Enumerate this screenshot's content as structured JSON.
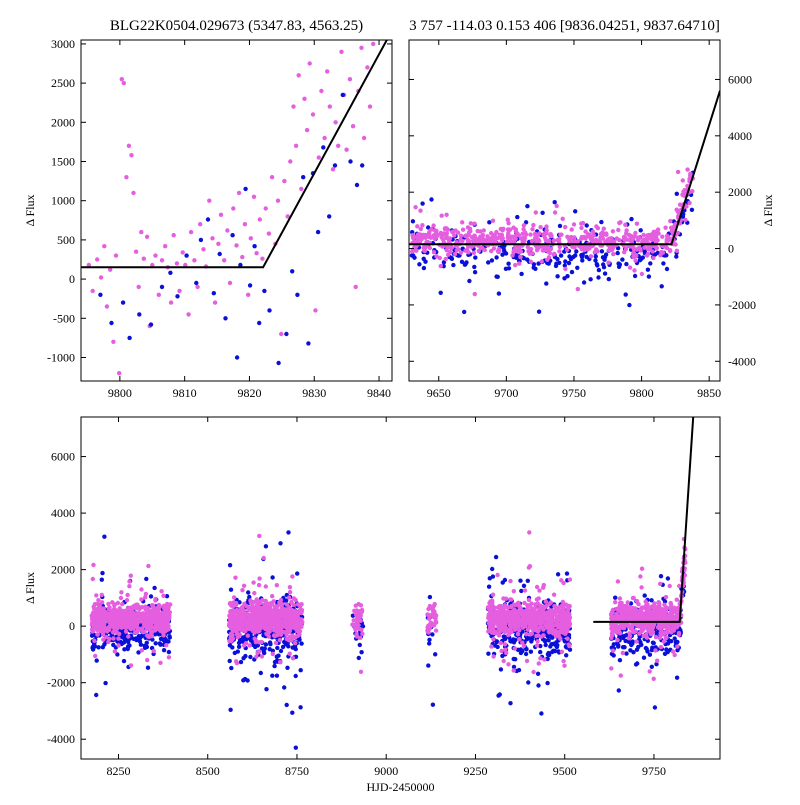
{
  "colors": {
    "series_pink": "#e55ee0",
    "series_blue": "#0a10d8",
    "model_line": "#000000",
    "axes": "#000000"
  },
  "chart_data": [
    {
      "type": "scatter",
      "title": "BLG22K0504.029673 (5347.83, 4563.25)",
      "xlabel": "",
      "ylabel": "Δ Flux",
      "xlim": [
        9794,
        9842
      ],
      "ylim": [
        -1300,
        3050
      ],
      "xticks": [
        9800,
        9810,
        9820,
        9830,
        9840
      ],
      "yticks": [
        -1000,
        -500,
        0,
        500,
        1000,
        1500,
        2000,
        2500,
        3000
      ],
      "yaxis_side": "left",
      "grid": false,
      "series": [
        {
          "color": "#e55ee0",
          "points": [
            [
              9795.2,
              180
            ],
            [
              9795.8,
              -150
            ],
            [
              9796.5,
              250
            ],
            [
              9797.1,
              20
            ],
            [
              9797.6,
              420
            ],
            [
              9798.0,
              -350
            ],
            [
              9798.5,
              120
            ],
            [
              9799.0,
              -800
            ],
            [
              9799.4,
              300
            ],
            [
              9799.9,
              -1200
            ],
            [
              9800.3,
              2550
            ],
            [
              9800.6,
              2500
            ],
            [
              9801.0,
              1300
            ],
            [
              9801.4,
              1700
            ],
            [
              9801.8,
              1580
            ],
            [
              9802.1,
              1100
            ],
            [
              9802.5,
              350
            ],
            [
              9802.9,
              -100
            ],
            [
              9803.3,
              600
            ],
            [
              9803.7,
              260
            ],
            [
              9804.2,
              540
            ],
            [
              9804.6,
              -600
            ],
            [
              9805.0,
              180
            ],
            [
              9805.5,
              300
            ],
            [
              9806.0,
              -200
            ],
            [
              9806.5,
              240
            ],
            [
              9807.0,
              420
            ],
            [
              9807.4,
              150
            ],
            [
              9807.9,
              -300
            ],
            [
              9808.3,
              560
            ],
            [
              9808.8,
              200
            ],
            [
              9809.2,
              -150
            ],
            [
              9809.7,
              340
            ],
            [
              9810.1,
              180
            ],
            [
              9810.6,
              -450
            ],
            [
              9811.0,
              600
            ],
            [
              9811.5,
              240
            ],
            [
              9812.0,
              -100
            ],
            [
              9812.4,
              700
            ],
            [
              9812.9,
              380
            ],
            [
              9813.3,
              160
            ],
            [
              9813.8,
              1000
            ],
            [
              9814.3,
              520
            ],
            [
              9814.7,
              -300
            ],
            [
              9815.2,
              450
            ],
            [
              9815.6,
              820
            ],
            [
              9816.1,
              240
            ],
            [
              9816.6,
              620
            ],
            [
              9817.0,
              -50
            ],
            [
              9817.5,
              900
            ],
            [
              9818.0,
              430
            ],
            [
              9818.4,
              1100
            ],
            [
              9818.9,
              280
            ],
            [
              9819.3,
              700
            ],
            [
              9819.8,
              -200
            ],
            [
              9820.2,
              520
            ],
            [
              9820.7,
              1050
            ],
            [
              9821.1,
              330
            ],
            [
              9821.6,
              760
            ],
            [
              9822.0,
              260
            ],
            [
              9822.5,
              900
            ],
            [
              9823.0,
              580
            ],
            [
              9823.5,
              1300
            ],
            [
              9824.0,
              450
            ],
            [
              9824.4,
              1000
            ],
            [
              9824.9,
              -700
            ],
            [
              9825.4,
              1250
            ],
            [
              9825.9,
              800
            ],
            [
              9826.3,
              1500
            ],
            [
              9826.8,
              2200
            ],
            [
              9827.2,
              1700
            ],
            [
              9827.6,
              2600
            ],
            [
              9828.0,
              1150
            ],
            [
              9828.5,
              2300
            ],
            [
              9828.9,
              1900
            ],
            [
              9829.3,
              2750
            ],
            [
              9829.8,
              2100
            ],
            [
              9830.2,
              -400
            ],
            [
              9830.7,
              1550
            ],
            [
              9831.1,
              2400
            ],
            [
              9831.6,
              1800
            ],
            [
              9832.0,
              2650
            ],
            [
              9832.4,
              2200
            ],
            [
              9832.9,
              1400
            ],
            [
              9833.3,
              2000
            ],
            [
              9833.7,
              1700
            ],
            [
              9834.2,
              2900
            ],
            [
              9834.6,
              2350
            ],
            [
              9835.0,
              1650
            ],
            [
              9835.5,
              2550
            ],
            [
              9836.0,
              1950
            ],
            [
              9836.4,
              -100
            ],
            [
              9836.8,
              2400
            ],
            [
              9837.3,
              2950
            ],
            [
              9837.7,
              1800
            ],
            [
              9838.2,
              2700
            ],
            [
              9838.6,
              2200
            ],
            [
              9839.1,
              3000
            ]
          ]
        },
        {
          "color": "#0a10d8",
          "points": [
            [
              9797.0,
              -200
            ],
            [
              9798.7,
              -560
            ],
            [
              9800.5,
              -300
            ],
            [
              9801.5,
              -750
            ],
            [
              9803.0,
              -450
            ],
            [
              9804.8,
              -580
            ],
            [
              9806.5,
              -100
            ],
            [
              9807.8,
              80
            ],
            [
              9808.9,
              -220
            ],
            [
              9810.3,
              300
            ],
            [
              9811.8,
              -50
            ],
            [
              9812.5,
              500
            ],
            [
              9813.6,
              760
            ],
            [
              9814.5,
              -180
            ],
            [
              9815.4,
              320
            ],
            [
              9816.3,
              -500
            ],
            [
              9817.4,
              560
            ],
            [
              9818.1,
              -1000
            ],
            [
              9818.6,
              180
            ],
            [
              9819.4,
              1150
            ],
            [
              9820.1,
              -80
            ],
            [
              9820.8,
              420
            ],
            [
              9821.5,
              -560
            ],
            [
              9822.3,
              -150
            ],
            [
              9823.1,
              -400
            ],
            [
              9824.5,
              -1070
            ],
            [
              9825.7,
              -700
            ],
            [
              9826.6,
              100
            ],
            [
              9827.4,
              -200
            ],
            [
              9828.3,
              1300
            ],
            [
              9829.1,
              -820
            ],
            [
              9829.8,
              1350
            ],
            [
              9830.6,
              600
            ],
            [
              9831.4,
              1680
            ],
            [
              9832.3,
              800
            ],
            [
              9833.2,
              1450
            ],
            [
              9834.4,
              2350
            ],
            [
              9835.6,
              1500
            ],
            [
              9836.6,
              1200
            ],
            [
              9837.4,
              1450
            ]
          ]
        }
      ],
      "model_line": [
        [
          9794,
          150
        ],
        [
          9822.1,
          150
        ],
        [
          9841.2,
          3050
        ]
      ]
    },
    {
      "type": "scatter",
      "title": "3 757 -114.03 0.153 406 [9836.04251, 9837.64710]",
      "xlabel": "",
      "ylabel": "Δ Flux",
      "xlim": [
        9628,
        9858
      ],
      "ylim": [
        -4700,
        7400
      ],
      "xticks": [
        9650,
        9700,
        9750,
        9800,
        9850
      ],
      "yticks": [
        -4000,
        -2000,
        0,
        2000,
        4000,
        6000
      ],
      "yaxis_side": "right",
      "grid": false,
      "model_line": [
        [
          9628,
          150
        ],
        [
          9822.1,
          150
        ],
        [
          9858,
          5600
        ]
      ]
    },
    {
      "type": "scatter",
      "title": "",
      "xlabel": "HJD-2450000",
      "ylabel": "Δ Flux",
      "xlim": [
        8145,
        9935
      ],
      "ylim": [
        -4700,
        7400
      ],
      "xticks": [
        8250,
        8500,
        8750,
        9000,
        9250,
        9500,
        9750
      ],
      "yticks": [
        -4000,
        -2000,
        0,
        2000,
        4000,
        6000
      ],
      "yaxis_side": "left",
      "grid": false,
      "model_line": [
        [
          9580,
          150
        ],
        [
          9822.1,
          150
        ],
        [
          9860,
          7400
        ]
      ]
    }
  ]
}
